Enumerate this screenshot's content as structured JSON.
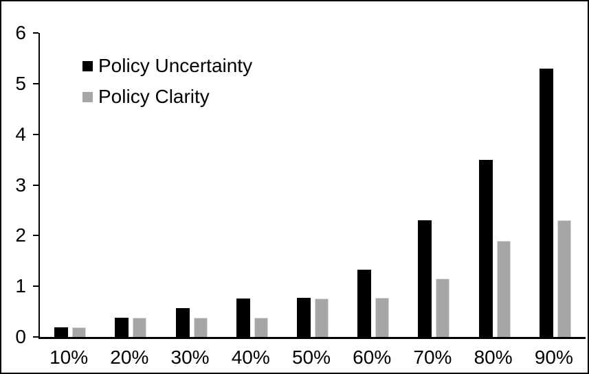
{
  "chart_data": {
    "type": "bar",
    "title": "",
    "xlabel": "",
    "ylabel": "",
    "categories": [
      "10%",
      "20%",
      "30%",
      "40%",
      "50%",
      "60%",
      "70%",
      "80%",
      "90%"
    ],
    "series": [
      {
        "name": "Policy Uncertainty",
        "color": "#000000",
        "values": [
          0.19,
          0.38,
          0.57,
          0.76,
          0.77,
          1.33,
          2.3,
          3.5,
          5.3
        ]
      },
      {
        "name": "Policy Clarity",
        "color": "#a6a6a6",
        "values": [
          0.19,
          0.38,
          0.38,
          0.38,
          0.76,
          0.77,
          1.15,
          1.9,
          2.3
        ]
      }
    ],
    "ylim": [
      0,
      6
    ],
    "yticks": [
      0,
      1,
      2,
      3,
      4,
      5,
      6
    ],
    "grid": false,
    "legend_position": "top-left",
    "frame_color": "#000000",
    "background_color": "#ffffff"
  }
}
